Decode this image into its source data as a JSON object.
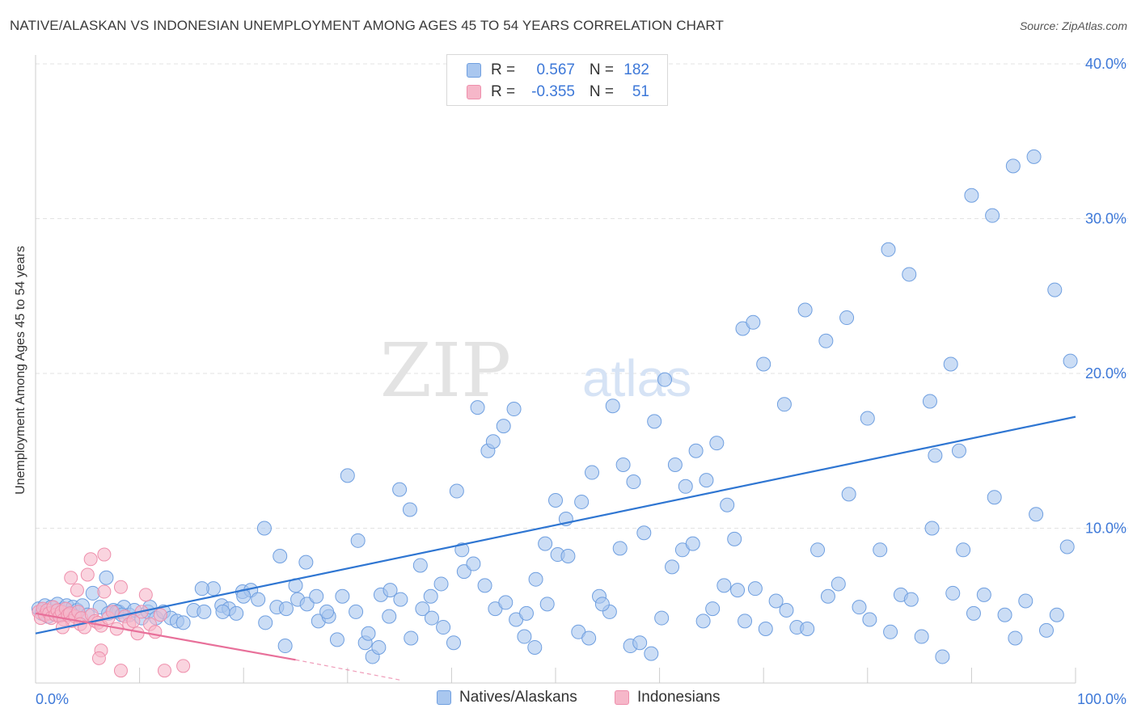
{
  "title": "NATIVE/ALASKAN VS INDONESIAN UNEMPLOYMENT AMONG AGES 45 TO 54 YEARS CORRELATION CHART",
  "source": "Source: ZipAtlas.com",
  "watermark": {
    "zip": "ZIP",
    "atlas": "atlas"
  },
  "legend": {
    "r_label": "R =",
    "n_label": "N =",
    "series": [
      {
        "r": "0.567",
        "n": "182"
      },
      {
        "r": "-0.355",
        "n": "51"
      }
    ]
  },
  "bottom_legend": [
    "Natives/Alaskans",
    "Indonesians"
  ],
  "colors": {
    "blue_fill": "#a9c7ef",
    "blue_stroke": "#6f9fe0",
    "blue_line": "#2f76d2",
    "pink_fill": "#f6b7c9",
    "pink_stroke": "#ee8fac",
    "pink_line": "#e8709a",
    "tick_text": "#3d78d8",
    "grid": "#e3e3e3"
  },
  "chart_data": {
    "type": "scatter",
    "title": "NATIVE/ALASKAN VS INDONESIAN UNEMPLOYMENT AMONG AGES 45 TO 54 YEARS CORRELATION CHART",
    "xlabel": "",
    "ylabel": "Unemployment Among Ages 45 to 54 years",
    "xlim": [
      0,
      100
    ],
    "ylim": [
      0,
      40
    ],
    "x_tick_labels": [
      "0.0%",
      "100.0%"
    ],
    "y_ticks": [
      10,
      20,
      30,
      40
    ],
    "y_tick_labels": [
      "10.0%",
      "20.0%",
      "30.0%",
      "40.0%"
    ],
    "grid": true,
    "series": [
      {
        "name": "Natives/Alaskans",
        "color": "#a9c7ef",
        "r": 0.567,
        "n": 182,
        "trend": {
          "x": [
            0,
            100
          ],
          "y": [
            3.2,
            17.2
          ]
        },
        "points": [
          [
            0.3,
            4.8
          ],
          [
            0.6,
            4.5
          ],
          [
            0.9,
            5.0
          ],
          [
            1.2,
            4.3
          ],
          [
            1.5,
            4.9
          ],
          [
            1.8,
            4.6
          ],
          [
            2.1,
            5.1
          ],
          [
            2.4,
            4.4
          ],
          [
            2.7,
            4.8
          ],
          [
            3.0,
            5.0
          ],
          [
            3.3,
            4.5
          ],
          [
            3.6,
            4.9
          ],
          [
            4.0,
            4.7
          ],
          [
            4.5,
            5.0
          ],
          [
            5.0,
            4.4
          ],
          [
            5.5,
            5.8
          ],
          [
            6.2,
            4.9
          ],
          [
            7.0,
            4.5
          ],
          [
            7.5,
            4.7
          ],
          [
            8.0,
            4.6
          ],
          [
            8.5,
            4.9
          ],
          [
            9.0,
            4.4
          ],
          [
            9.5,
            4.7
          ],
          [
            10.2,
            4.2
          ],
          [
            10.8,
            4.6
          ],
          [
            6.8,
            6.8
          ],
          [
            7.8,
            4.6
          ],
          [
            8.3,
            4.4
          ],
          [
            11.0,
            4.9
          ],
          [
            11.6,
            4.2
          ],
          [
            12.3,
            4.6
          ],
          [
            13.0,
            4.2
          ],
          [
            13.6,
            4.0
          ],
          [
            14.2,
            3.9
          ],
          [
            15.2,
            4.7
          ],
          [
            16.2,
            4.6
          ],
          [
            17.1,
            6.1
          ],
          [
            17.9,
            5.0
          ],
          [
            18.6,
            4.8
          ],
          [
            19.3,
            4.5
          ],
          [
            19.9,
            5.9
          ],
          [
            20.7,
            6.0
          ],
          [
            21.4,
            5.4
          ],
          [
            22.1,
            3.9
          ],
          [
            23.2,
            4.9
          ],
          [
            24.1,
            4.8
          ],
          [
            25.2,
            5.4
          ],
          [
            26.1,
            5.1
          ],
          [
            27.2,
            4.0
          ],
          [
            28.2,
            4.3
          ],
          [
            29.5,
            5.6
          ],
          [
            30.8,
            4.6
          ],
          [
            31.7,
            2.6
          ],
          [
            32.4,
            1.7
          ],
          [
            33.2,
            5.7
          ],
          [
            34.1,
            6.0
          ],
          [
            35.1,
            5.4
          ],
          [
            36.1,
            2.9
          ],
          [
            37.2,
            4.8
          ],
          [
            38.1,
            4.2
          ],
          [
            39.2,
            3.6
          ],
          [
            40.2,
            2.6
          ],
          [
            41.2,
            7.2
          ],
          [
            42.1,
            7.7
          ],
          [
            43.2,
            6.3
          ],
          [
            44.2,
            4.8
          ],
          [
            45.2,
            5.2
          ],
          [
            46.2,
            4.1
          ],
          [
            47.2,
            4.5
          ],
          [
            48.1,
            6.7
          ],
          [
            49.2,
            5.1
          ],
          [
            50.2,
            8.3
          ],
          [
            51.2,
            8.2
          ],
          [
            52.2,
            3.3
          ],
          [
            53.2,
            2.9
          ],
          [
            54.2,
            5.6
          ],
          [
            55.2,
            4.6
          ],
          [
            56.2,
            8.7
          ],
          [
            57.2,
            2.4
          ],
          [
            58.1,
            2.6
          ],
          [
            59.2,
            1.9
          ],
          [
            60.2,
            4.2
          ],
          [
            61.2,
            7.5
          ],
          [
            62.2,
            8.6
          ],
          [
            63.2,
            9.0
          ],
          [
            64.2,
            4.0
          ],
          [
            65.1,
            4.8
          ],
          [
            66.2,
            6.3
          ],
          [
            67.2,
            9.3
          ],
          [
            68.2,
            4.0
          ],
          [
            69.2,
            6.1
          ],
          [
            70.2,
            3.5
          ],
          [
            71.2,
            5.3
          ],
          [
            72.2,
            4.7
          ],
          [
            73.2,
            3.6
          ],
          [
            74.2,
            3.5
          ],
          [
            75.2,
            8.6
          ],
          [
            76.2,
            5.6
          ],
          [
            77.2,
            6.4
          ],
          [
            78.2,
            12.2
          ],
          [
            79.2,
            4.9
          ],
          [
            80.2,
            4.1
          ],
          [
            81.2,
            8.6
          ],
          [
            82.2,
            3.3
          ],
          [
            83.2,
            5.7
          ],
          [
            84.2,
            5.4
          ],
          [
            85.2,
            3.0
          ],
          [
            86.2,
            10.0
          ],
          [
            87.2,
            1.7
          ],
          [
            88.2,
            5.8
          ],
          [
            89.2,
            8.6
          ],
          [
            90.2,
            4.5
          ],
          [
            91.2,
            5.7
          ],
          [
            92.2,
            12.0
          ],
          [
            93.2,
            4.4
          ],
          [
            94.2,
            2.9
          ],
          [
            95.2,
            5.3
          ],
          [
            96.2,
            10.9
          ],
          [
            97.2,
            3.4
          ],
          [
            98.2,
            4.4
          ],
          [
            99.2,
            8.8
          ],
          [
            16.0,
            6.1
          ],
          [
            18.0,
            4.6
          ],
          [
            20.0,
            5.6
          ],
          [
            22.0,
            10.0
          ],
          [
            23.5,
            8.2
          ],
          [
            24.0,
            2.4
          ],
          [
            25.0,
            6.3
          ],
          [
            26.0,
            7.8
          ],
          [
            27.0,
            5.6
          ],
          [
            28.0,
            4.6
          ],
          [
            29.0,
            2.8
          ],
          [
            30.0,
            13.4
          ],
          [
            31.0,
            9.2
          ],
          [
            32.0,
            3.2
          ],
          [
            33.0,
            2.3
          ],
          [
            34.0,
            4.3
          ],
          [
            35.0,
            12.5
          ],
          [
            36.0,
            11.2
          ],
          [
            37.0,
            7.6
          ],
          [
            38.0,
            5.6
          ],
          [
            39.0,
            6.4
          ],
          [
            40.5,
            12.4
          ],
          [
            41.0,
            8.6
          ],
          [
            42.5,
            17.8
          ],
          [
            43.5,
            15.0
          ],
          [
            44.0,
            15.6
          ],
          [
            45.0,
            16.6
          ],
          [
            46.0,
            17.7
          ],
          [
            47.0,
            3.0
          ],
          [
            48.0,
            2.3
          ],
          [
            49.0,
            9.0
          ],
          [
            50.0,
            11.8
          ],
          [
            51.0,
            10.6
          ],
          [
            52.5,
            11.7
          ],
          [
            53.5,
            13.6
          ],
          [
            54.5,
            5.1
          ],
          [
            55.5,
            17.9
          ],
          [
            56.5,
            14.1
          ],
          [
            57.5,
            13.0
          ],
          [
            58.5,
            9.7
          ],
          [
            59.5,
            16.9
          ],
          [
            60.5,
            19.6
          ],
          [
            61.5,
            14.1
          ],
          [
            62.5,
            12.7
          ],
          [
            63.5,
            15.0
          ],
          [
            64.5,
            13.1
          ],
          [
            65.5,
            15.5
          ],
          [
            66.5,
            11.5
          ],
          [
            67.5,
            6.0
          ],
          [
            68.0,
            22.9
          ],
          [
            69.0,
            23.3
          ],
          [
            70.0,
            20.6
          ],
          [
            72.0,
            18.0
          ],
          [
            74.0,
            24.1
          ],
          [
            76.0,
            22.1
          ],
          [
            78.0,
            23.6
          ],
          [
            80.0,
            17.1
          ],
          [
            82.0,
            28.0
          ],
          [
            84.0,
            26.4
          ],
          [
            86.0,
            18.2
          ],
          [
            88.0,
            20.6
          ],
          [
            90.0,
            31.5
          ],
          [
            92.0,
            30.2
          ],
          [
            94.0,
            33.4
          ],
          [
            96.0,
            34.0
          ],
          [
            98.0,
            25.4
          ],
          [
            99.5,
            20.8
          ],
          [
            86.5,
            14.7
          ],
          [
            88.8,
            15.0
          ]
        ]
      },
      {
        "name": "Indonesians",
        "color": "#f6b7c9",
        "r": -0.355,
        "n": 51,
        "trend": {
          "x": [
            0,
            25
          ],
          "y": [
            4.5,
            1.5
          ]
        },
        "trend_dashed": {
          "x": [
            25,
            35
          ],
          "y": [
            1.5,
            0.2
          ]
        },
        "points": [
          [
            0.3,
            4.6
          ],
          [
            0.5,
            4.2
          ],
          [
            0.7,
            4.8
          ],
          [
            0.9,
            4.4
          ],
          [
            1.1,
            4.7
          ],
          [
            1.3,
            4.5
          ],
          [
            1.5,
            4.2
          ],
          [
            1.7,
            4.9
          ],
          [
            1.9,
            4.4
          ],
          [
            2.1,
            4.7
          ],
          [
            2.3,
            4.3
          ],
          [
            2.5,
            4.6
          ],
          [
            2.7,
            4.1
          ],
          [
            2.9,
            4.8
          ],
          [
            3.1,
            4.4
          ],
          [
            3.3,
            4.5
          ],
          [
            3.5,
            4.0
          ],
          [
            3.8,
            4.3
          ],
          [
            4.1,
            4.6
          ],
          [
            4.4,
            4.2
          ],
          [
            2.6,
            3.6
          ],
          [
            3.4,
            6.8
          ],
          [
            4.0,
            6.0
          ],
          [
            4.3,
            3.8
          ],
          [
            4.7,
            3.6
          ],
          [
            5.0,
            7.0
          ],
          [
            5.4,
            4.4
          ],
          [
            5.7,
            4.0
          ],
          [
            6.0,
            3.9
          ],
          [
            6.3,
            3.7
          ],
          [
            6.6,
            5.9
          ],
          [
            7.0,
            4.2
          ],
          [
            7.4,
            4.6
          ],
          [
            7.8,
            3.5
          ],
          [
            8.2,
            6.2
          ],
          [
            8.6,
            4.3
          ],
          [
            9.0,
            3.8
          ],
          [
            9.4,
            4.0
          ],
          [
            9.8,
            3.2
          ],
          [
            10.2,
            4.6
          ],
          [
            10.6,
            5.7
          ],
          [
            11.0,
            3.8
          ],
          [
            11.5,
            3.3
          ],
          [
            12.0,
            4.4
          ],
          [
            5.3,
            8.0
          ],
          [
            6.6,
            8.3
          ],
          [
            6.3,
            2.1
          ],
          [
            6.1,
            1.6
          ],
          [
            8.2,
            0.8
          ],
          [
            12.4,
            0.8
          ],
          [
            14.2,
            1.1
          ]
        ]
      }
    ]
  }
}
